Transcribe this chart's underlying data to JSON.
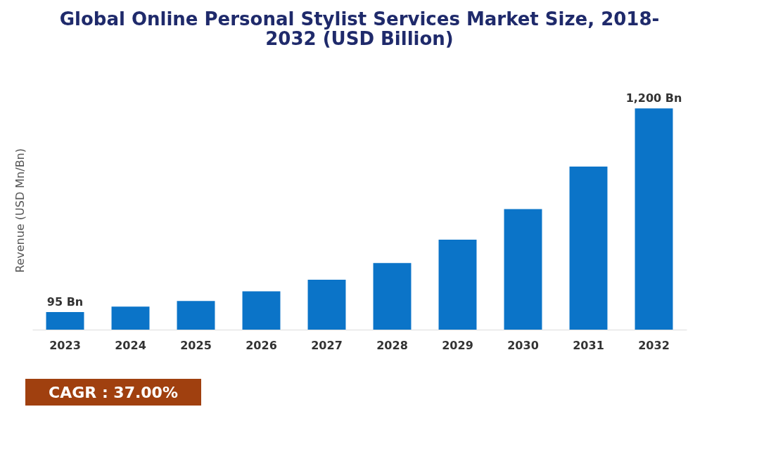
{
  "chart_data": {
    "type": "bar",
    "title": [
      "Global Online Personal Stylist Services Market Size, 2018-",
      "2032 (USD Billion)"
    ],
    "ylabel": "Revenue (USD Mn/Bn)",
    "categories": [
      "2023",
      "2024",
      "2025",
      "2026",
      "2027",
      "2028",
      "2029",
      "2030",
      "2031",
      "2032"
    ],
    "values": [
      95,
      125,
      155,
      208,
      271,
      361,
      488,
      654,
      884,
      1200
    ],
    "value_labels": [
      "95 Bn",
      null,
      null,
      null,
      null,
      null,
      null,
      null,
      null,
      "1,200 Bn"
    ],
    "color": "#0b74c8",
    "annotations": [
      "CAGR : 37.00%"
    ]
  }
}
